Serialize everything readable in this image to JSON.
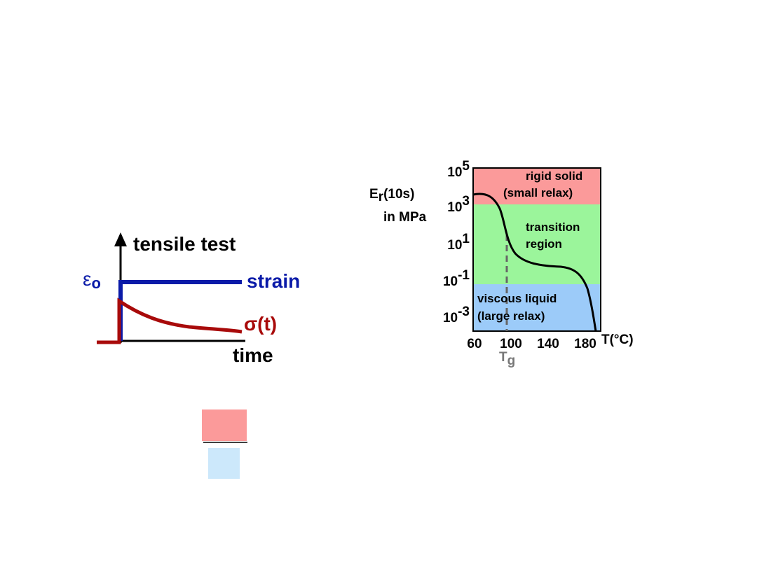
{
  "left_diagram": {
    "title": "tensile test",
    "strain_label": "strain",
    "strain_symbol": "ε",
    "strain_subscript": "o",
    "stress_label": "σ(t)",
    "x_label": "time"
  },
  "right_diagram": {
    "y_label_main": "E",
    "y_label_subscript": "r",
    "y_label_suffix": "(10s)",
    "y_label_units": "in MPa",
    "y_ticks": [
      {
        "base": "10",
        "exponent": "5"
      },
      {
        "base": "10",
        "exponent": "3"
      },
      {
        "base": "10",
        "exponent": "1"
      },
      {
        "base": "10",
        "exponent": "-1"
      },
      {
        "base": "10",
        "exponent": "-3"
      }
    ],
    "x_ticks": [
      "60",
      "100",
      "140",
      "180"
    ],
    "x_label": "T(°C)",
    "regions": [
      {
        "line1": "rigid solid",
        "line2": "(small relax)"
      },
      {
        "line1": "transition",
        "line2": "region"
      },
      {
        "line1": "viscous liquid",
        "line2": "(large relax)"
      }
    ],
    "tg_main": "T",
    "tg_subscript": "g"
  }
}
